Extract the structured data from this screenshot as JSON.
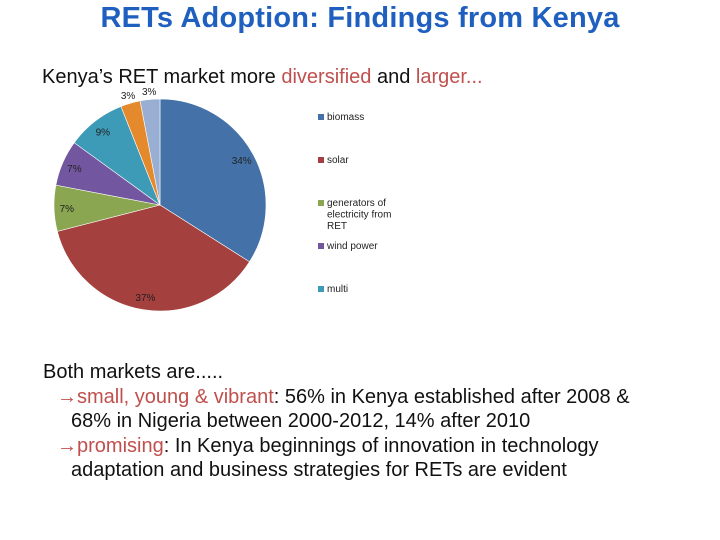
{
  "slide": {
    "title": "RETs Adoption: Findings from Kenya",
    "subtitle_prefix": "Kenya’s RET market more ",
    "subtitle_word1": "diversified",
    "subtitle_mid": " and ",
    "subtitle_word2": "larger...",
    "accent_color": "#c0504d",
    "title_color": "#1f5fbf"
  },
  "body": {
    "intro": "Both markets are.....",
    "arrow_glyph": "→",
    "point1_key": "small, young & vibrant",
    "point1_text": ": 56% in Kenya established after 2008 &",
    "point1_cont": "68% in Nigeria  between 2000-2012, 14% after 2010",
    "point2_key": "promising",
    "point2_text": ": In Kenya beginnings of innovation in technology",
    "point2_cont": "adaptation and business strategies for RETs are evident"
  },
  "chart_data": {
    "type": "pie",
    "slices": [
      {
        "label": "biomass",
        "value": 34,
        "display": "34%",
        "color": "#4472a8"
      },
      {
        "label": "solar",
        "value": 37,
        "display": "37%",
        "color": "#a4403d"
      },
      {
        "label": "generators of electricity from RET",
        "value": 7,
        "display": "7%",
        "color": "#8aa650"
      },
      {
        "label": "wind power",
        "value": 7,
        "display": "7%",
        "color": "#7256a0"
      },
      {
        "label": "multi",
        "value": 9,
        "display": "9%",
        "color": "#3d9bb8"
      },
      {
        "label": "",
        "value": 3,
        "display": "3%",
        "color": "#e58a2c"
      },
      {
        "label": "",
        "value": 3,
        "display": "3%",
        "color": "#98aed2"
      }
    ],
    "legend_entries": [
      {
        "label_lines": [
          "biomass"
        ],
        "color": "#4472a8"
      },
      {
        "label_lines": [
          "solar"
        ],
        "color": "#a4403d"
      },
      {
        "label_lines": [
          "generators of",
          "electricity from",
          "RET"
        ],
        "color": "#8aa650"
      },
      {
        "label_lines": [
          "wind power"
        ],
        "color": "#7256a0"
      },
      {
        "label_lines": [
          "multi"
        ],
        "color": "#3d9bb8"
      }
    ],
    "legend_position": "right",
    "start_angle_deg": 0,
    "direction": "clockwise"
  }
}
